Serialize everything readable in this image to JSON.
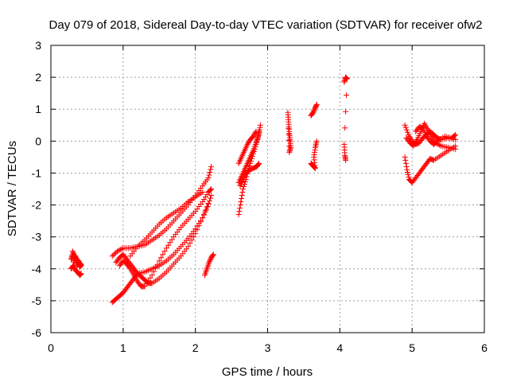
{
  "chart_data": {
    "type": "scatter",
    "title": "Day 079 of 2018, Sidereal Day-to-day VTEC variation (SDTVAR) for receiver ofw2",
    "xlabel": "GPS time / hours",
    "ylabel": "SDTVAR / TECUs",
    "xlim": [
      0,
      6
    ],
    "ylim": [
      -6,
      3
    ],
    "xticks": [
      "0",
      "1",
      "2",
      "3",
      "4",
      "5",
      "6"
    ],
    "yticks": [
      "-6",
      "-5",
      "-4",
      "-3",
      "-2",
      "-1",
      "0",
      "1",
      "2",
      "3"
    ],
    "grid": true,
    "marker": "+",
    "color": "#ff0000",
    "segments": [
      [
        [
          0.28,
          -3.7
        ],
        [
          0.3,
          -3.55
        ],
        [
          0.32,
          -3.8
        ],
        [
          0.34,
          -3.6
        ],
        [
          0.36,
          -3.9
        ],
        [
          0.38,
          -3.75
        ],
        [
          0.4,
          -3.95
        ],
        [
          0.42,
          -3.85
        ]
      ],
      [
        [
          0.28,
          -4.0
        ],
        [
          0.31,
          -3.9
        ],
        [
          0.34,
          -4.05
        ],
        [
          0.37,
          -4.1
        ],
        [
          0.4,
          -4.2
        ],
        [
          0.42,
          -4.15
        ]
      ],
      [
        [
          0.3,
          -3.45
        ],
        [
          0.33,
          -3.6
        ],
        [
          0.36,
          -3.7
        ],
        [
          0.39,
          -3.8
        ],
        [
          0.42,
          -3.9
        ]
      ],
      [
        [
          0.85,
          -5.05
        ],
        [
          0.9,
          -4.95
        ],
        [
          0.95,
          -4.85
        ],
        [
          1.0,
          -4.75
        ],
        [
          1.05,
          -4.6
        ],
        [
          1.1,
          -4.45
        ],
        [
          1.15,
          -4.3
        ],
        [
          1.2,
          -4.15
        ],
        [
          1.3,
          -4.1
        ],
        [
          1.4,
          -4.0
        ],
        [
          1.5,
          -3.9
        ],
        [
          1.6,
          -3.75
        ],
        [
          1.7,
          -3.55
        ],
        [
          1.8,
          -3.3
        ],
        [
          1.9,
          -3.05
        ],
        [
          2.0,
          -2.75
        ],
        [
          2.1,
          -2.4
        ],
        [
          2.17,
          -2.05
        ],
        [
          2.22,
          -1.7
        ]
      ],
      [
        [
          0.85,
          -3.6
        ],
        [
          0.92,
          -3.45
        ],
        [
          1.0,
          -3.35
        ],
        [
          1.1,
          -3.35
        ],
        [
          1.2,
          -3.3
        ],
        [
          1.3,
          -3.25
        ],
        [
          1.4,
          -3.1
        ],
        [
          1.5,
          -2.95
        ],
        [
          1.6,
          -2.75
        ],
        [
          1.7,
          -2.5
        ],
        [
          1.8,
          -2.25
        ],
        [
          1.9,
          -2.0
        ],
        [
          2.0,
          -1.7
        ],
        [
          2.1,
          -1.4
        ],
        [
          2.18,
          -1.15
        ],
        [
          2.22,
          -0.8
        ]
      ],
      [
        [
          0.9,
          -3.8
        ],
        [
          0.95,
          -3.65
        ],
        [
          1.0,
          -3.55
        ],
        [
          1.05,
          -3.7
        ],
        [
          1.1,
          -3.85
        ],
        [
          1.15,
          -4.0
        ],
        [
          1.2,
          -4.15
        ],
        [
          1.25,
          -4.25
        ],
        [
          1.3,
          -4.35
        ],
        [
          1.35,
          -4.45
        ],
        [
          1.4,
          -4.45
        ],
        [
          1.5,
          -4.3
        ],
        [
          1.6,
          -4.1
        ],
        [
          1.7,
          -3.85
        ],
        [
          1.8,
          -3.6
        ],
        [
          1.9,
          -3.3
        ],
        [
          2.0,
          -2.9
        ],
        [
          2.1,
          -2.4
        ],
        [
          2.18,
          -1.95
        ]
      ],
      [
        [
          0.95,
          -3.9
        ],
        [
          1.0,
          -3.75
        ],
        [
          1.05,
          -3.85
        ],
        [
          1.1,
          -4.0
        ],
        [
          1.15,
          -4.2
        ],
        [
          1.2,
          -4.4
        ],
        [
          1.25,
          -4.55
        ],
        [
          1.3,
          -4.55
        ],
        [
          1.4,
          -4.2
        ],
        [
          1.5,
          -3.75
        ],
        [
          1.6,
          -3.35
        ],
        [
          1.7,
          -3.0
        ],
        [
          1.8,
          -2.7
        ],
        [
          1.9,
          -2.45
        ],
        [
          2.0,
          -2.2
        ],
        [
          2.1,
          -1.9
        ],
        [
          2.18,
          -1.6
        ],
        [
          2.22,
          -1.5
        ]
      ],
      [
        [
          1.1,
          -3.6
        ],
        [
          1.2,
          -3.3
        ],
        [
          1.3,
          -3.1
        ],
        [
          1.4,
          -2.85
        ],
        [
          1.5,
          -2.6
        ],
        [
          1.6,
          -2.4
        ],
        [
          1.7,
          -2.25
        ],
        [
          1.8,
          -2.1
        ],
        [
          1.9,
          -1.9
        ],
        [
          2.0,
          -1.75
        ],
        [
          2.1,
          -1.6
        ]
      ],
      [
        [
          2.13,
          -4.2
        ],
        [
          2.16,
          -4.0
        ],
        [
          2.19,
          -3.8
        ],
        [
          2.22,
          -3.65
        ],
        [
          2.25,
          -3.55
        ]
      ],
      [
        [
          2.6,
          -2.3
        ],
        [
          2.63,
          -1.9
        ],
        [
          2.66,
          -1.5
        ],
        [
          2.7,
          -1.2
        ],
        [
          2.74,
          -0.85
        ],
        [
          2.78,
          -0.55
        ],
        [
          2.82,
          -0.25
        ],
        [
          2.86,
          0.05
        ],
        [
          2.88,
          0.3
        ]
      ],
      [
        [
          2.6,
          -1.3
        ],
        [
          2.64,
          -1.1
        ],
        [
          2.68,
          -0.9
        ],
        [
          2.72,
          -0.7
        ],
        [
          2.76,
          -0.5
        ],
        [
          2.8,
          -0.3
        ],
        [
          2.84,
          -0.05
        ],
        [
          2.88,
          0.2
        ],
        [
          2.9,
          0.5
        ]
      ],
      [
        [
          2.6,
          -0.7
        ],
        [
          2.64,
          -0.5
        ],
        [
          2.68,
          -0.3
        ],
        [
          2.72,
          -0.1
        ],
        [
          2.76,
          0.05
        ],
        [
          2.8,
          0.15
        ],
        [
          2.84,
          0.3
        ]
      ],
      [
        [
          2.62,
          -1.4
        ],
        [
          2.66,
          -1.2
        ],
        [
          2.7,
          -1.0
        ],
        [
          2.75,
          -0.9
        ],
        [
          2.8,
          -0.85
        ],
        [
          2.85,
          -0.8
        ],
        [
          2.88,
          -0.7
        ]
      ],
      [
        [
          3.28,
          0.9
        ],
        [
          3.29,
          0.6
        ],
        [
          3.3,
          0.3
        ],
        [
          3.31,
          0.05
        ],
        [
          3.32,
          -0.2
        ],
        [
          3.3,
          -0.35
        ],
        [
          3.29,
          0.4
        ]
      ],
      [
        [
          3.6,
          0.8
        ],
        [
          3.63,
          0.9
        ],
        [
          3.66,
          1.05
        ],
        [
          3.68,
          1.15
        ]
      ],
      [
        [
          3.6,
          -0.7
        ],
        [
          3.62,
          -0.75
        ],
        [
          3.64,
          -0.8
        ],
        [
          3.66,
          -0.85
        ],
        [
          3.64,
          -0.5
        ],
        [
          3.66,
          -0.2
        ],
        [
          3.68,
          0.0
        ]
      ],
      [
        [
          4.06,
          1.85
        ],
        [
          4.08,
          2.0
        ],
        [
          4.1,
          1.95
        ],
        [
          4.06,
          -0.1
        ],
        [
          4.07,
          -0.45
        ],
        [
          4.08,
          -0.6
        ]
      ],
      [
        [
          4.9,
          -0.5
        ],
        [
          4.93,
          -0.9
        ],
        [
          4.96,
          -1.2
        ],
        [
          5.0,
          -1.3
        ],
        [
          5.05,
          -1.15
        ],
        [
          5.1,
          -1.0
        ],
        [
          5.15,
          -0.85
        ],
        [
          5.2,
          -0.7
        ],
        [
          5.25,
          -0.55
        ],
        [
          5.3,
          -0.6
        ],
        [
          5.4,
          -0.45
        ],
        [
          5.5,
          -0.3
        ],
        [
          5.6,
          -0.15
        ]
      ],
      [
        [
          4.9,
          0.5
        ],
        [
          4.95,
          0.2
        ],
        [
          5.0,
          0.0
        ],
        [
          5.05,
          -0.1
        ],
        [
          5.1,
          -0.05
        ],
        [
          5.15,
          0.1
        ],
        [
          5.2,
          0.2
        ],
        [
          5.25,
          0.3
        ],
        [
          5.3,
          0.2
        ],
        [
          5.35,
          0.1
        ],
        [
          5.4,
          0.05
        ],
        [
          5.5,
          0.1
        ],
        [
          5.6,
          0.05
        ]
      ],
      [
        [
          4.92,
          0.1
        ],
        [
          4.97,
          -0.05
        ],
        [
          5.02,
          -0.15
        ],
        [
          5.07,
          0.05
        ],
        [
          5.12,
          0.3
        ],
        [
          5.17,
          0.55
        ],
        [
          5.22,
          0.35
        ],
        [
          5.27,
          0.15
        ],
        [
          5.32,
          -0.05
        ],
        [
          5.4,
          -0.15
        ],
        [
          5.5,
          -0.2
        ],
        [
          5.6,
          -0.25
        ]
      ],
      [
        [
          5.05,
          0.3
        ],
        [
          5.1,
          0.45
        ],
        [
          5.15,
          0.4
        ],
        [
          5.2,
          0.15
        ],
        [
          5.25,
          0.0
        ],
        [
          5.3,
          -0.1
        ],
        [
          5.35,
          0.0
        ],
        [
          5.45,
          0.15
        ],
        [
          5.55,
          0.1
        ],
        [
          5.6,
          0.2
        ]
      ]
    ]
  }
}
